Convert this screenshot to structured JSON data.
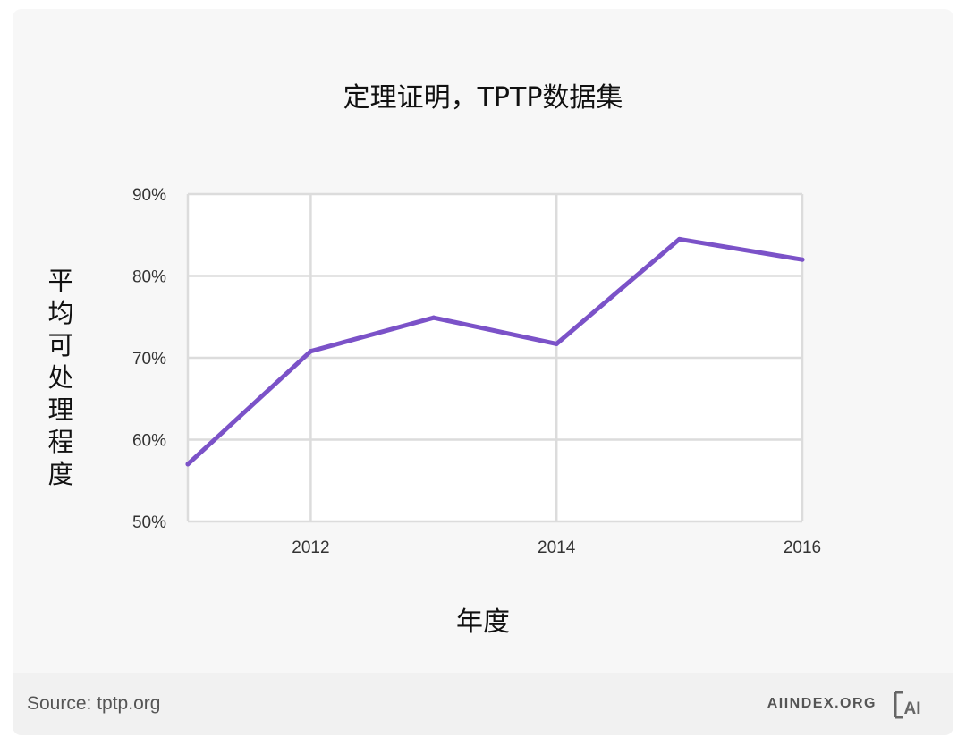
{
  "header": {
    "title": "定理证明，TPTP数据集"
  },
  "footer": {
    "source": "Source: tptp.org",
    "brand": "AIINDEX.ORG",
    "logo_text": "AI"
  },
  "colors": {
    "line": "#7b52c8",
    "grid": "#dcdcdc",
    "plot_bg": "#ffffff",
    "card_bg": "#f7f7f7"
  },
  "chart_data": {
    "type": "line",
    "title": "定理证明，TPTP数据集",
    "xlabel": "年度",
    "ylabel": "平均可处理程度",
    "x": [
      2011,
      2012,
      2013,
      2014,
      2015,
      2016
    ],
    "series": [
      {
        "values": [
          57,
          70.8,
          74.9,
          71.7,
          84.5,
          82
        ]
      }
    ],
    "x_ticks": [
      2012,
      2014,
      2016
    ],
    "x_tick_labels": [
      "2012",
      "2014",
      "2016"
    ],
    "y_ticks": [
      50,
      60,
      70,
      80,
      90
    ],
    "y_tick_labels": [
      "50%",
      "60%",
      "70%",
      "80%",
      "90%"
    ],
    "xlim": [
      2011,
      2016
    ],
    "ylim": [
      50,
      90
    ],
    "grid": true,
    "legend": "none"
  }
}
